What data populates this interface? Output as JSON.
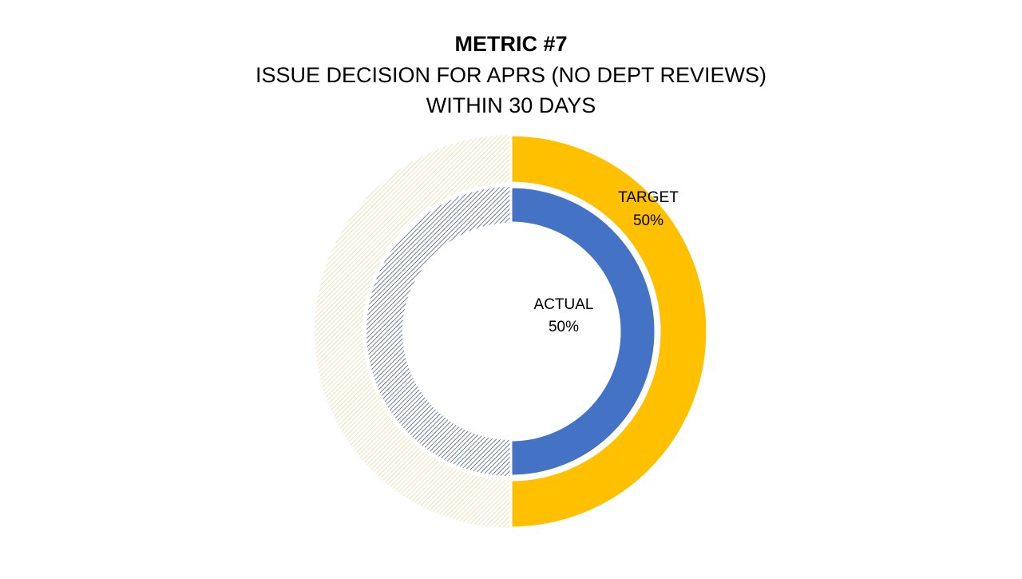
{
  "chart_data": {
    "type": "donut",
    "title": "METRIC #7",
    "subtitle": [
      "ISSUE DECISION FOR APRS (NO DEPT REVIEWS)",
      "WITHIN 30 DAYS"
    ],
    "series": [
      {
        "name": "TARGET",
        "color": "#ffc000",
        "values": [
          50
        ],
        "value_labels": [
          "50%"
        ]
      },
      {
        "name": "ACTUAL",
        "color": "#4472c4",
        "values": [
          50
        ],
        "value_labels": [
          "50%"
        ]
      }
    ]
  }
}
